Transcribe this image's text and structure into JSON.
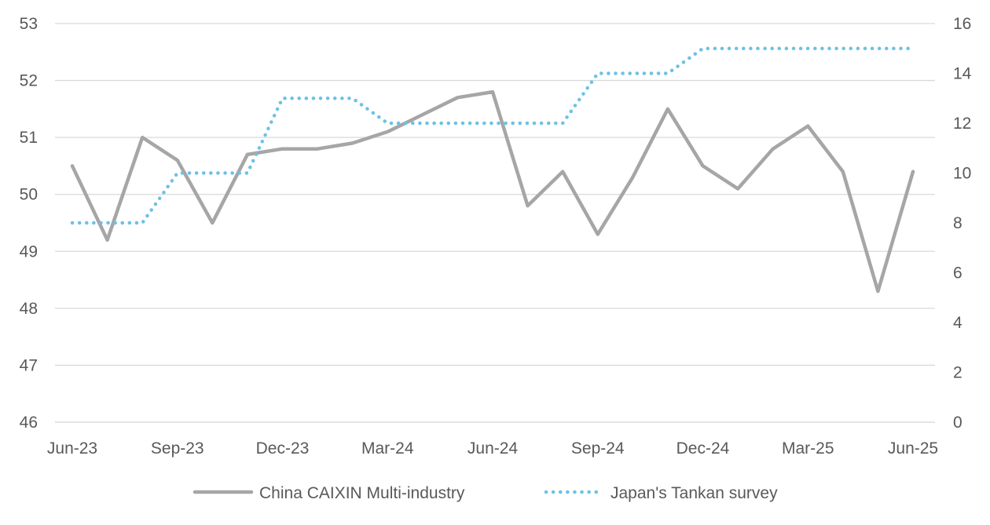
{
  "chart_data": {
    "type": "line",
    "x": [
      "Jun-23",
      "Jul-23",
      "Aug-23",
      "Sep-23",
      "Oct-23",
      "Nov-23",
      "Dec-23",
      "Jan-24",
      "Feb-24",
      "Mar-24",
      "Apr-24",
      "May-24",
      "Jun-24",
      "Jul-24",
      "Aug-24",
      "Sep-24",
      "Oct-24",
      "Nov-24",
      "Dec-24",
      "Jan-25",
      "Feb-25",
      "Mar-25",
      "Apr-25",
      "May-25",
      "Jun-25"
    ],
    "x_tick_labels": [
      "Jun-23",
      "Sep-23",
      "Dec-23",
      "Mar-24",
      "Jun-24",
      "Sep-24",
      "Dec-24",
      "Mar-25",
      "Jun-25"
    ],
    "y_left_ticks": [
      "46",
      "47",
      "48",
      "49",
      "50",
      "51",
      "52",
      "53"
    ],
    "y_right_ticks": [
      "0",
      "2",
      "4",
      "6",
      "8",
      "10",
      "12",
      "14",
      "16"
    ],
    "ylim_left": [
      46,
      53
    ],
    "ylim_right": [
      0,
      16
    ],
    "grid": true,
    "legend_position": "bottom",
    "series": [
      {
        "name": "China CAIXIN Multi-industry",
        "axis": "left",
        "style": "solid",
        "color": "#A6A6A6",
        "values": [
          50.5,
          49.2,
          51.0,
          50.6,
          49.5,
          50.7,
          50.8,
          50.8,
          50.9,
          51.1,
          51.4,
          51.7,
          51.8,
          49.8,
          50.4,
          49.3,
          50.3,
          51.5,
          50.5,
          50.1,
          50.8,
          51.2,
          50.4,
          48.3,
          50.4
        ]
      },
      {
        "name": "Japan's Tankan survey",
        "axis": "right",
        "style": "dotted",
        "color": "#6EC1E4",
        "values": [
          8,
          8,
          8,
          10,
          10,
          10,
          13,
          13,
          13,
          12,
          12,
          12,
          12,
          12,
          12,
          14,
          14,
          14,
          15,
          15,
          15,
          15,
          15,
          15,
          15
        ]
      }
    ]
  }
}
